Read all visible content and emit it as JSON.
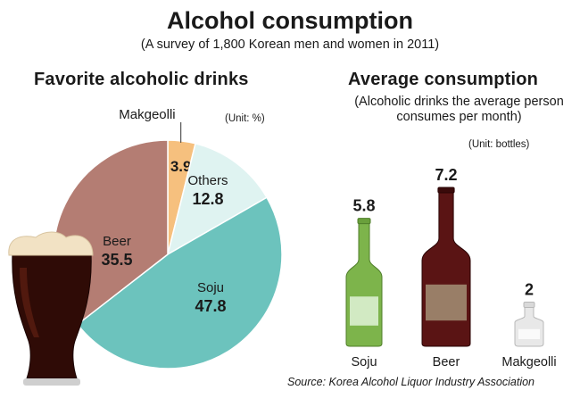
{
  "title": "Alcohol consumption",
  "subtitle": "(A survey of 1,800 Korean men and women in 2011)",
  "pie": {
    "heading": "Favorite alcoholic drinks",
    "unit": "(Unit: %)"
  },
  "bars": {
    "heading": "Average consumption",
    "note": "(Alcoholic drinks the average person consumes per month)",
    "unit": "(Unit: bottles)"
  },
  "source": "Source: Korea Alcohol Liquor Industry Association",
  "chart_data": [
    {
      "type": "pie",
      "title": "Favorite alcoholic drinks",
      "unit": "%",
      "slices": [
        {
          "label": "Makgeolli",
          "value": 3.9,
          "value_label": "3.9",
          "color": "#f6c07e"
        },
        {
          "label": "Others",
          "value": 12.8,
          "value_label": "12.8",
          "color": "#dff3f1"
        },
        {
          "label": "Soju",
          "value": 47.8,
          "value_label": "47.8",
          "color": "#6cc3bd"
        },
        {
          "label": "Beer",
          "value": 35.5,
          "value_label": "35.5",
          "color": "#b47d73"
        }
      ]
    },
    {
      "type": "bar",
      "title": "Average consumption",
      "unit": "bottles",
      "categories": [
        "Soju",
        "Beer",
        "Makgeolli"
      ],
      "values": [
        5.8,
        7.2,
        2
      ],
      "value_labels": [
        "5.8",
        "7.2",
        "2"
      ],
      "colors": [
        "#7db44b",
        "#5a1414",
        "#e8e8e8"
      ]
    }
  ]
}
